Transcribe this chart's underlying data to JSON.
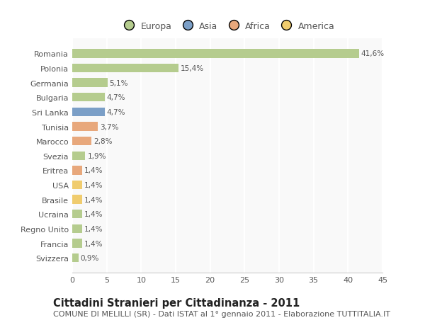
{
  "categories": [
    "Romania",
    "Polonia",
    "Germania",
    "Bulgaria",
    "Sri Lanka",
    "Tunisia",
    "Marocco",
    "Svezia",
    "Eritrea",
    "USA",
    "Brasile",
    "Ucraina",
    "Regno Unito",
    "Francia",
    "Svizzera"
  ],
  "values": [
    41.6,
    15.4,
    5.1,
    4.7,
    4.7,
    3.7,
    2.8,
    1.9,
    1.4,
    1.4,
    1.4,
    1.4,
    1.4,
    1.4,
    0.9
  ],
  "labels": [
    "41,6%",
    "15,4%",
    "5,1%",
    "4,7%",
    "4,7%",
    "3,7%",
    "2,8%",
    "1,9%",
    "1,4%",
    "1,4%",
    "1,4%",
    "1,4%",
    "1,4%",
    "1,4%",
    "0,9%"
  ],
  "continents": [
    "Europa",
    "Europa",
    "Europa",
    "Europa",
    "Asia",
    "Africa",
    "Africa",
    "Europa",
    "Africa",
    "America",
    "America",
    "Europa",
    "Europa",
    "Europa",
    "Europa"
  ],
  "colors": {
    "Europa": "#b5cc8e",
    "Asia": "#7b9fc7",
    "Africa": "#e8a87c",
    "America": "#f0cc6e"
  },
  "xlim": [
    0,
    45
  ],
  "xticks": [
    0,
    5,
    10,
    15,
    20,
    25,
    30,
    35,
    40,
    45
  ],
  "title": "Cittadini Stranieri per Cittadinanza - 2011",
  "subtitle": "COMUNE DI MELILLI (SR) - Dati ISTAT al 1° gennaio 2011 - Elaborazione TUTTITALIA.IT",
  "background_color": "#ffffff",
  "plot_bg_color": "#f9f9f9",
  "grid_color": "#ffffff",
  "bar_height": 0.6,
  "title_fontsize": 10.5,
  "subtitle_fontsize": 8,
  "label_fontsize": 7.5,
  "tick_fontsize": 8,
  "legend_fontsize": 9
}
